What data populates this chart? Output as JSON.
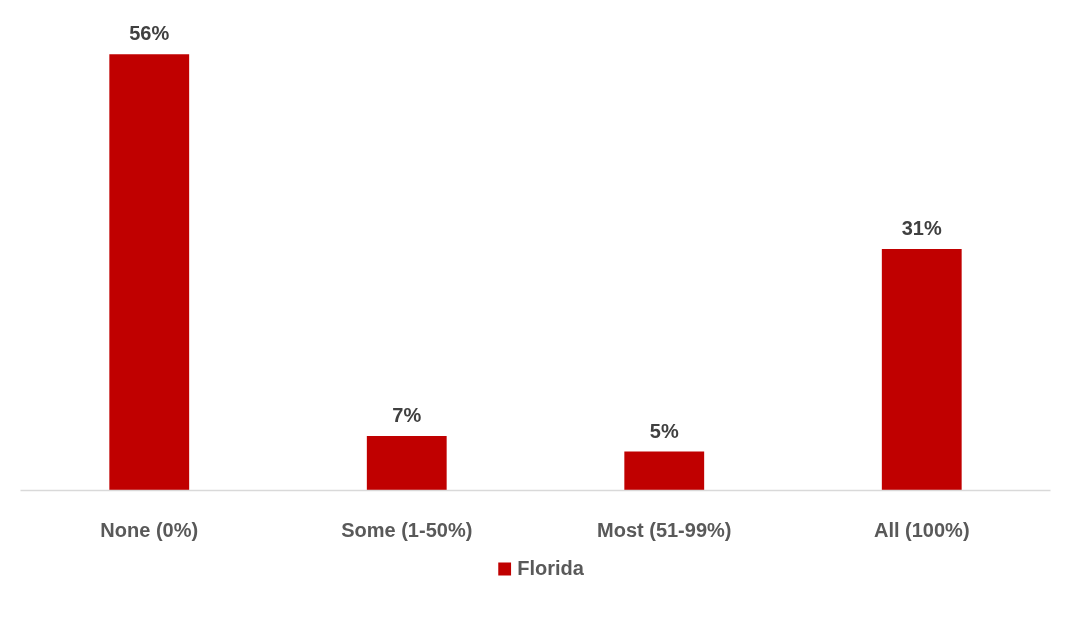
{
  "chart_data": {
    "type": "bar",
    "categories": [
      "None (0%)",
      "Some (1-50%)",
      "Most (51-99%)",
      "All (100%)"
    ],
    "series": [
      {
        "name": "Florida",
        "color": "#c00000",
        "values": [
          56,
          7,
          5,
          31
        ],
        "value_labels": [
          "56%",
          "7%",
          "5%",
          "31%"
        ]
      }
    ],
    "grid": false,
    "legend": "bottom"
  }
}
